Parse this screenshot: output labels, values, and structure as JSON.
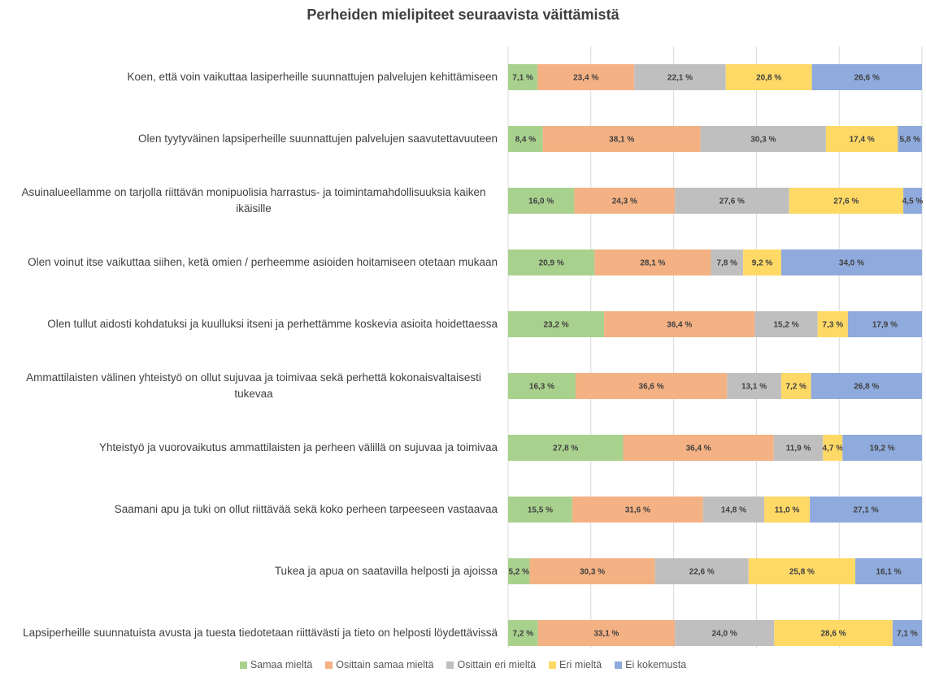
{
  "chart_data": {
    "type": "stacked_barh",
    "title": "Perheiden mielipiteet seuraavista väittämistä",
    "categories": [
      "Koen, että voin vaikuttaa lasiperheille suunnattujen palvelujen kehittämiseen",
      "Olen tyytyväinen lapsiperheille suunnattujen palvelujen saavutettavuuteen",
      "Asuinalueellamme on tarjolla riittävän monipuolisia harrastus- ja toimintamahdollisuuksia kaiken ikäisille",
      "Olen voinut itse vaikuttaa siihen, ketä omien / perheemme asioiden hoitamiseen otetaan mukaan",
      "Olen tullut aidosti kohdatuksi ja kuulluksi itseni ja perhettämme koskevia asioita hoidettaessa",
      "Ammattilaisten välinen yhteistyö on ollut sujuvaa ja toimivaa sekä perhettä kokonaisvaltaisesti tukevaa",
      "Yhteistyö ja vuorovaikutus ammattilaisten ja perheen välillä on sujuvaa ja toimivaa",
      "Saamani apu ja tuki on ollut riittävää sekä koko perheen tarpeeseen vastaavaa",
      "Tukea ja apua on saatavilla helposti ja ajoissa",
      "Lapsiperheille suunnatuista avusta ja tuesta tiedotetaan riittävästi ja tieto on helposti löydettävissä"
    ],
    "series": [
      {
        "name": "Samaa mieltä",
        "color": "#a9d18e",
        "values": [
          7.1,
          8.4,
          16.0,
          20.9,
          23.2,
          16.3,
          27.8,
          15.5,
          5.2,
          7.2
        ],
        "value_labels": [
          "7,1 %",
          "8,4 %",
          "16,0 %",
          "20,9 %",
          "23,2 %",
          "16,3 %",
          "27,8 %",
          "15,5 %",
          "5,2 %",
          "7,2 %"
        ]
      },
      {
        "name": "Osittain samaa mieltä",
        "color": "#f4b183",
        "values": [
          23.4,
          38.1,
          24.3,
          28.1,
          36.4,
          36.6,
          36.4,
          31.6,
          30.3,
          33.1
        ],
        "value_labels": [
          "23,4 %",
          "38,1 %",
          "24,3 %",
          "28,1 %",
          "36,4 %",
          "36,6 %",
          "36,4 %",
          "31,6 %",
          "30,3 %",
          "33,1 %"
        ]
      },
      {
        "name": "Osittain eri mieltä",
        "color": "#bfbfbf",
        "values": [
          22.1,
          30.3,
          27.6,
          7.8,
          15.2,
          13.1,
          11.9,
          14.8,
          22.6,
          24.0
        ],
        "value_labels": [
          "22,1 %",
          "30,3 %",
          "27,6 %",
          "7,8 %",
          "15,2 %",
          "13,1 %",
          "11,9 %",
          "14,8 %",
          "22,6 %",
          "24,0 %"
        ]
      },
      {
        "name": "Eri mieltä",
        "color": "#ffd966",
        "values": [
          20.8,
          17.4,
          27.6,
          9.2,
          7.3,
          7.2,
          4.7,
          11.0,
          25.8,
          28.6
        ],
        "value_labels": [
          "20,8 %",
          "17,4 %",
          "27,6 %",
          "9,2 %",
          "7,3 %",
          "7,2 %",
          "4,7 %",
          "11,0 %",
          "25,8 %",
          "28,6 %"
        ]
      },
      {
        "name": "Ei kokemusta",
        "color": "#8faadc",
        "values": [
          26.6,
          5.8,
          4.5,
          34.0,
          17.9,
          26.8,
          19.2,
          27.1,
          16.1,
          7.1
        ],
        "value_labels": [
          "26,6 %",
          "5,8 %",
          "4,5 %",
          "34,0 %",
          "17,9 %",
          "26,8 %",
          "19,2 %",
          "27,1 %",
          "16,1 %",
          "7,1 %"
        ]
      }
    ],
    "xlim": [
      0,
      100
    ],
    "xticks": [
      0,
      20,
      40,
      60,
      80,
      100
    ],
    "grid": true
  }
}
